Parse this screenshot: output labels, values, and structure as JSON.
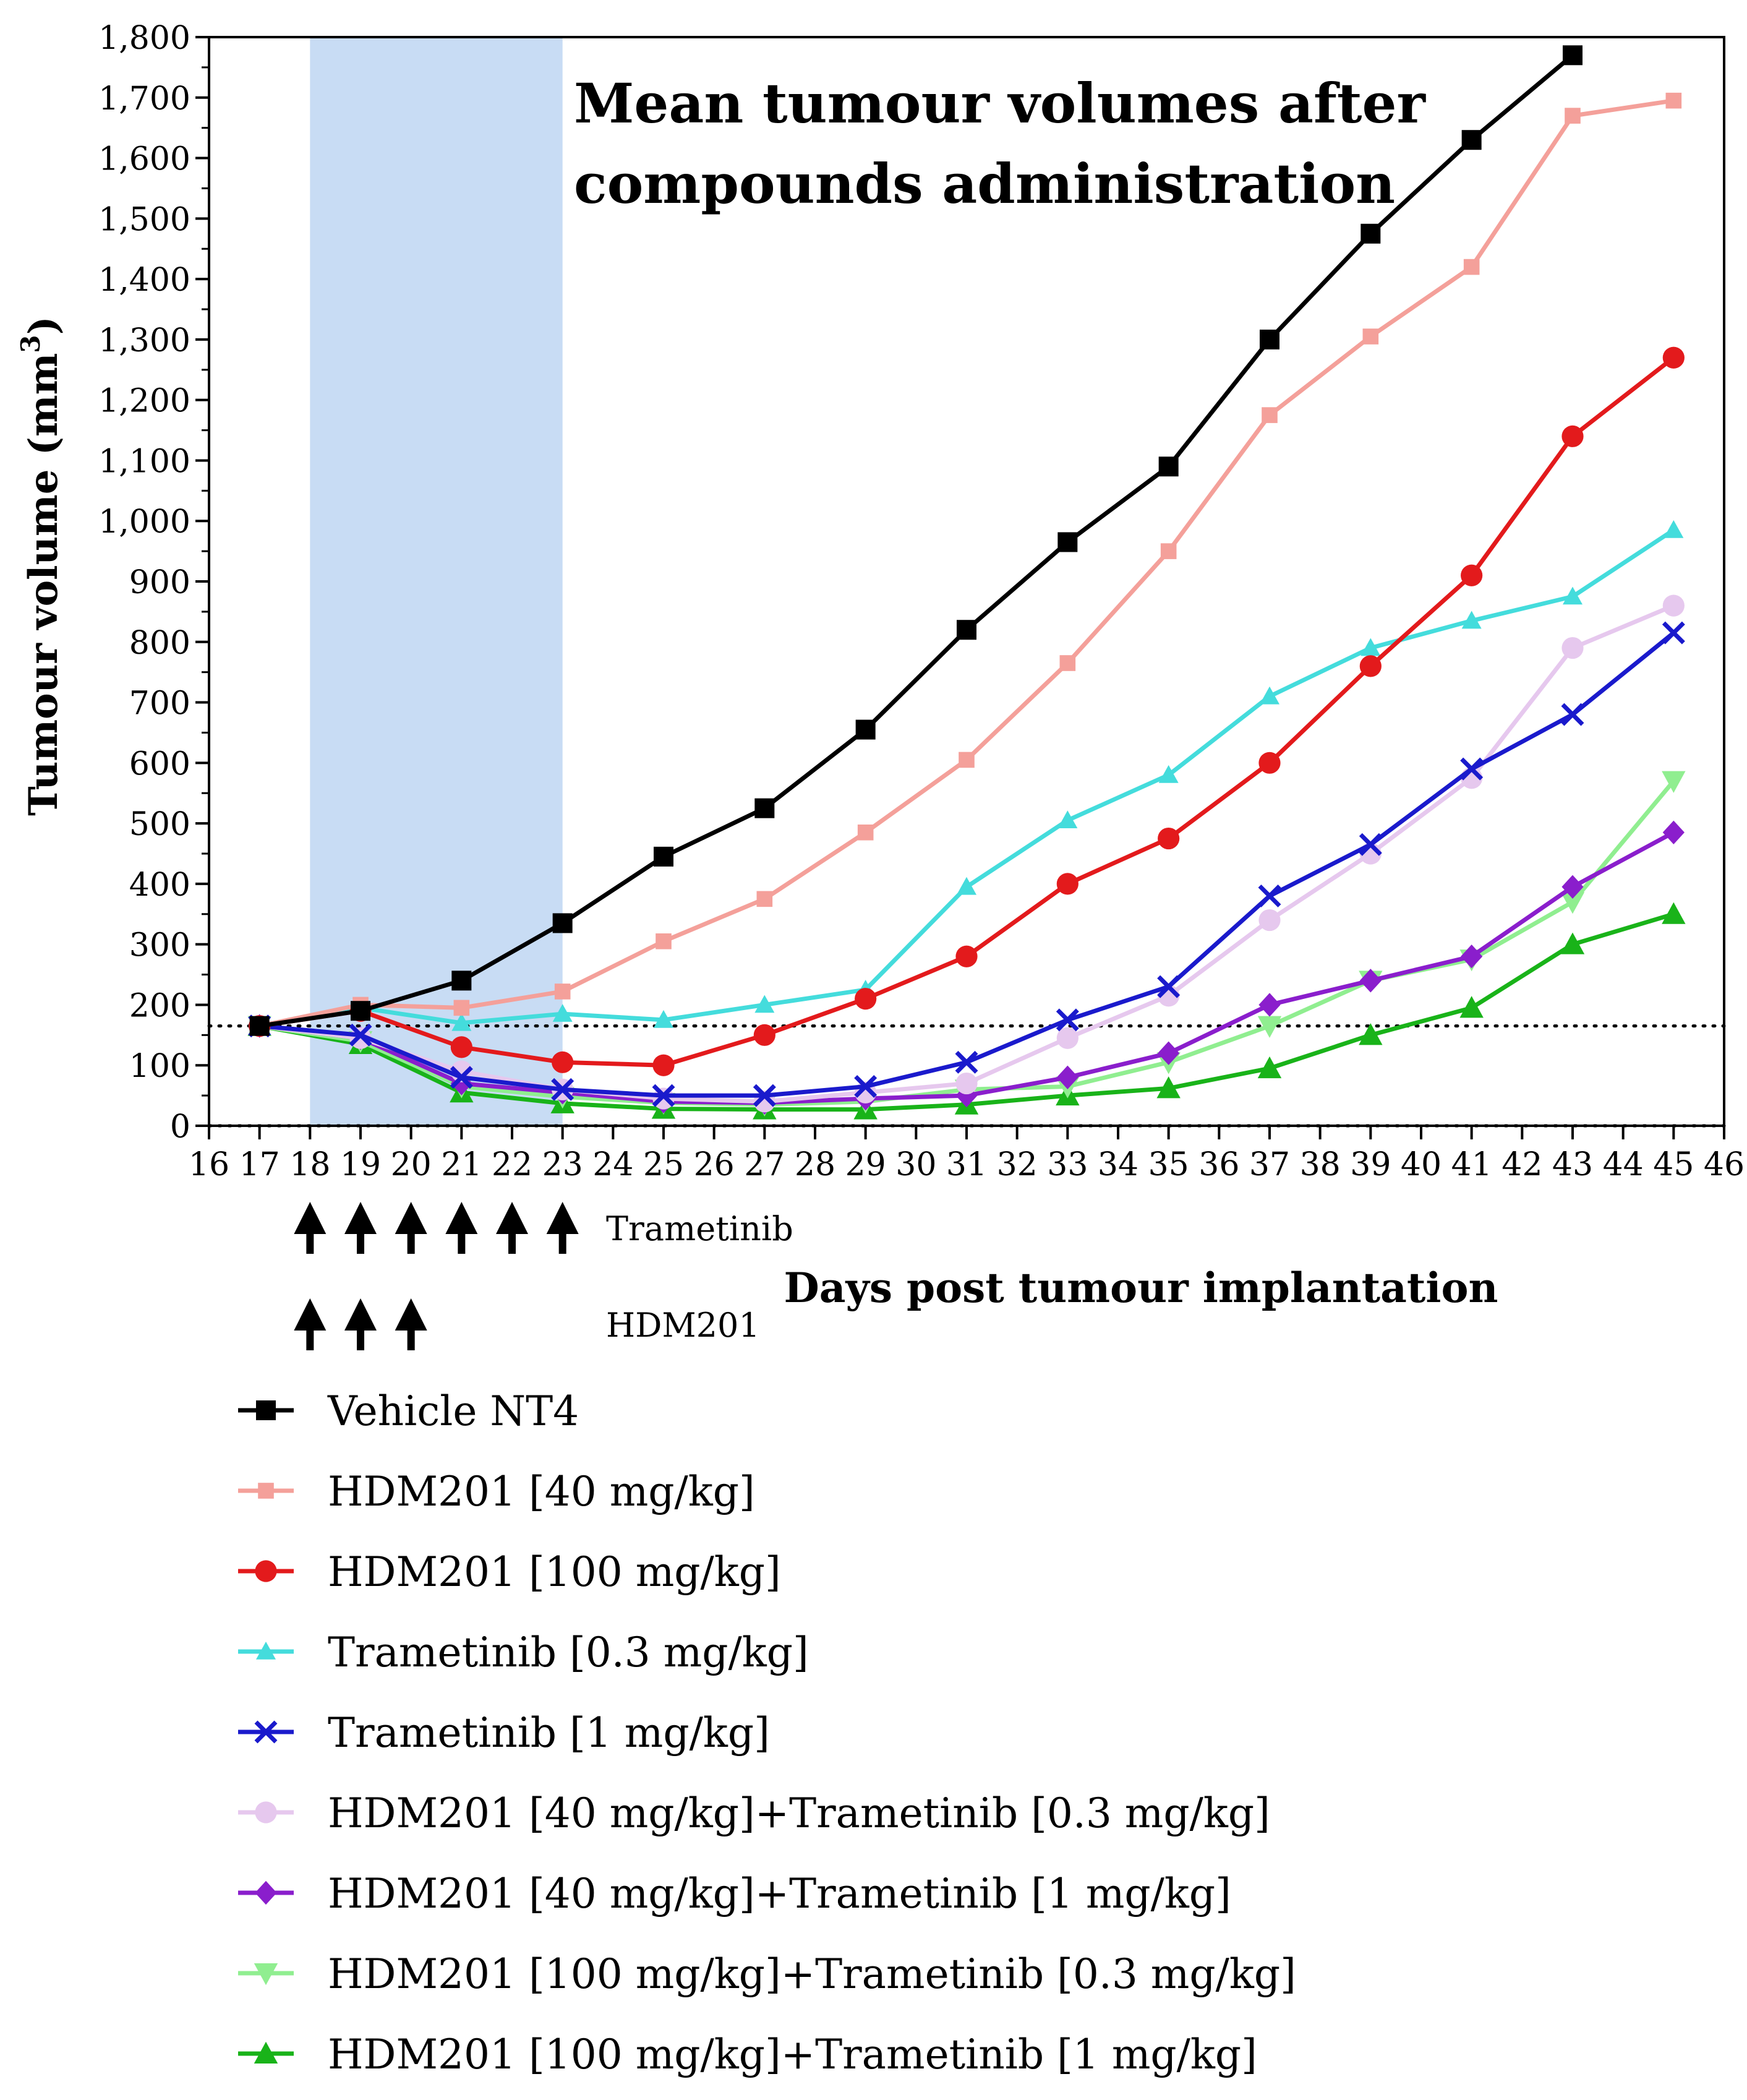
{
  "chart_data": {
    "type": "line",
    "title": "Mean tumour volumes after compounds administration",
    "title_lines": [
      "Mean tumour volumes after",
      "compounds administration"
    ],
    "xlabel": "Days post tumour implantation",
    "ylabel_main": "Tumour volume (mm",
    "ylabel_sup": "3",
    "ylabel_close": ")",
    "xlim": [
      16,
      46
    ],
    "ylim": [
      0,
      1800
    ],
    "x_ticks": [
      "16",
      "17",
      "18",
      "19",
      "20",
      "21",
      "22",
      "23",
      "24",
      "25",
      "26",
      "27",
      "28",
      "29",
      "30",
      "31",
      "32",
      "33",
      "34",
      "35",
      "36",
      "37",
      "38",
      "39",
      "40",
      "41",
      "42",
      "43",
      "44",
      "45",
      "46"
    ],
    "y_ticks": [
      "0",
      "100",
      "200",
      "300",
      "400",
      "500",
      "600",
      "700",
      "800",
      "900",
      "1,000",
      "1,100",
      "1,200",
      "1,300",
      "1,400",
      "1,500",
      "1,600",
      "1,700",
      "1,800"
    ],
    "shaded_region": {
      "x_start": 18,
      "x_end": 23,
      "color": "#c8dcf4"
    },
    "reference_lines": [
      165,
      0
    ],
    "dosing": [
      {
        "label": "Trametinib",
        "days": [
          18,
          19,
          20,
          21,
          22,
          23
        ]
      },
      {
        "label": "HDM201",
        "days": [
          18,
          19,
          20
        ]
      }
    ],
    "x": [
      17,
      19,
      21,
      23,
      25,
      27,
      29,
      31,
      33,
      35,
      37,
      39,
      41,
      43,
      45
    ],
    "series": [
      {
        "name": "Vehicle NT4",
        "color": "#000000",
        "marker": "square",
        "values": [
          165,
          190,
          240,
          335,
          445,
          525,
          655,
          820,
          965,
          1090,
          1300,
          1475,
          1630,
          1770,
          null
        ]
      },
      {
        "name": "HDM201 [40 mg/kg]",
        "color": "#f4a09a",
        "marker": "square-small",
        "values": [
          165,
          200,
          195,
          222,
          305,
          375,
          485,
          605,
          765,
          950,
          1175,
          1305,
          1420,
          1670,
          1695
        ]
      },
      {
        "name": "HDM201 [100 mg/kg]",
        "color": "#e31a1c",
        "marker": "circle",
        "values": [
          165,
          190,
          130,
          105,
          100,
          150,
          210,
          280,
          400,
          475,
          600,
          760,
          910,
          1140,
          1270
        ]
      },
      {
        "name": "Trametinib [0.3 mg/kg]",
        "color": "#44dcdc",
        "marker": "triangle-small",
        "values": [
          165,
          195,
          170,
          185,
          175,
          200,
          225,
          395,
          505,
          580,
          710,
          790,
          835,
          875,
          985
        ]
      },
      {
        "name": "Trametinib [1 mg/kg]",
        "color": "#1a1acc",
        "marker": "cross",
        "values": [
          165,
          150,
          80,
          60,
          50,
          50,
          65,
          105,
          175,
          230,
          380,
          465,
          590,
          680,
          815
        ]
      },
      {
        "name": "HDM201 [40 mg/kg]+Trametinib [0.3 mg/kg]",
        "color": "#e6c8ee",
        "marker": "circle",
        "values": [
          165,
          145,
          90,
          60,
          45,
          40,
          55,
          70,
          145,
          215,
          340,
          450,
          575,
          790,
          860
        ]
      },
      {
        "name": "HDM201 [40 mg/kg]+Trametinib [1 mg/kg]",
        "color": "#8a1ecc",
        "marker": "diamond",
        "values": [
          165,
          145,
          70,
          55,
          40,
          38,
          45,
          50,
          80,
          120,
          200,
          240,
          280,
          395,
          485
        ]
      },
      {
        "name": "HDM201 [100 mg/kg]+Trametinib [0.3 mg/kg]",
        "color": "#90ee90",
        "marker": "triangle-down",
        "values": [
          165,
          140,
          65,
          48,
          38,
          35,
          40,
          60,
          65,
          105,
          165,
          240,
          275,
          370,
          570
        ]
      },
      {
        "name": "HDM201 [100 mg/kg]+Trametinib [1 mg/kg]",
        "color": "#19b319",
        "marker": "triangle",
        "values": [
          165,
          135,
          55,
          37,
          28,
          27,
          27,
          35,
          50,
          62,
          95,
          150,
          195,
          300,
          350
        ]
      }
    ]
  }
}
